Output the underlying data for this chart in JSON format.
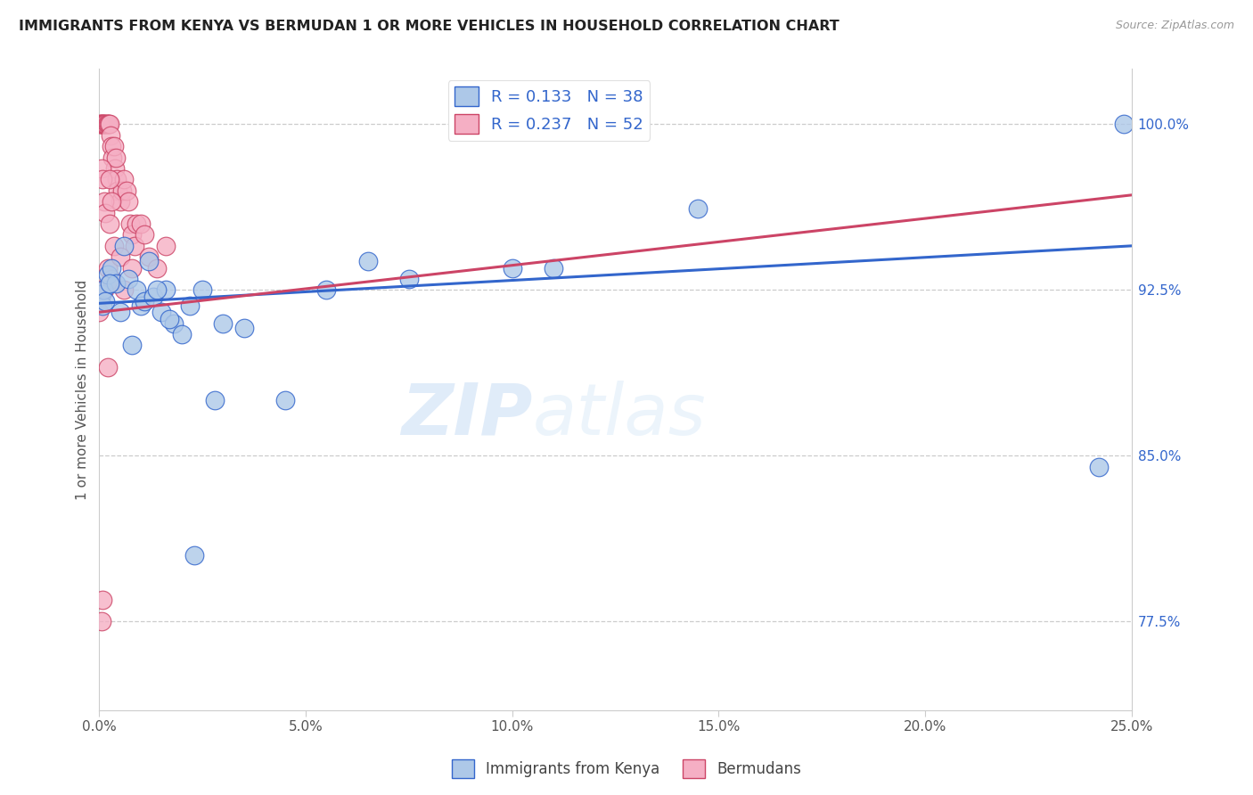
{
  "title": "IMMIGRANTS FROM KENYA VS BERMUDAN 1 OR MORE VEHICLES IN HOUSEHOLD CORRELATION CHART",
  "source": "Source: ZipAtlas.com",
  "xlabel_vals": [
    0.0,
    5.0,
    10.0,
    15.0,
    20.0,
    25.0
  ],
  "ylabel_vals": [
    77.5,
    85.0,
    92.5,
    100.0
  ],
  "ylabel_label": "1 or more Vehicles in Household",
  "legend_label1": "Immigrants from Kenya",
  "legend_label2": "Bermudans",
  "R1": 0.133,
  "N1": 38,
  "R2": 0.237,
  "N2": 52,
  "color1": "#adc8e8",
  "color2": "#f5afc4",
  "line_color1": "#3366cc",
  "line_color2": "#cc4466",
  "watermark_zip": "ZIP",
  "watermark_atlas": "atlas",
  "xlim": [
    0.0,
    25.0
  ],
  "ylim": [
    73.5,
    102.5
  ],
  "kenya_x": [
    0.05,
    0.08,
    0.1,
    0.15,
    0.2,
    0.3,
    0.4,
    0.5,
    0.6,
    0.7,
    0.9,
    1.0,
    1.1,
    1.2,
    1.3,
    1.5,
    1.6,
    1.8,
    2.0,
    2.2,
    2.5,
    3.0,
    3.5,
    4.5,
    5.5,
    7.5,
    10.0,
    11.0,
    24.2,
    24.8,
    0.25,
    0.8,
    1.4,
    2.8,
    6.5,
    14.5,
    1.7,
    2.3
  ],
  "kenya_y": [
    92.3,
    91.8,
    92.5,
    92.0,
    93.2,
    93.5,
    92.8,
    91.5,
    94.5,
    93.0,
    92.5,
    91.8,
    92.0,
    93.8,
    92.2,
    91.5,
    92.5,
    91.0,
    90.5,
    91.8,
    92.5,
    91.0,
    90.8,
    87.5,
    92.5,
    93.0,
    93.5,
    93.5,
    84.5,
    100.0,
    92.8,
    90.0,
    92.5,
    87.5,
    93.8,
    96.2,
    91.2,
    80.5
  ],
  "bermuda_x": [
    0.02,
    0.04,
    0.06,
    0.08,
    0.1,
    0.12,
    0.15,
    0.18,
    0.2,
    0.22,
    0.25,
    0.28,
    0.3,
    0.32,
    0.35,
    0.38,
    0.4,
    0.42,
    0.45,
    0.5,
    0.55,
    0.6,
    0.65,
    0.7,
    0.75,
    0.8,
    0.85,
    0.9,
    1.0,
    1.1,
    1.2,
    1.4,
    1.6,
    0.05,
    0.08,
    0.12,
    0.15,
    0.2,
    0.25,
    0.3,
    0.35,
    0.05,
    0.08,
    0.12,
    0.2,
    0.25,
    0.0,
    0.0,
    0.3,
    0.5,
    0.6,
    0.8
  ],
  "bermuda_y": [
    100.0,
    100.0,
    100.0,
    100.0,
    100.0,
    100.0,
    100.0,
    100.0,
    100.0,
    100.0,
    100.0,
    99.5,
    99.0,
    98.5,
    99.0,
    98.0,
    98.5,
    97.5,
    97.0,
    96.5,
    97.0,
    97.5,
    97.0,
    96.5,
    95.5,
    95.0,
    94.5,
    95.5,
    95.5,
    95.0,
    94.0,
    93.5,
    94.5,
    98.0,
    97.5,
    96.5,
    96.0,
    93.5,
    95.5,
    96.5,
    94.5,
    77.5,
    78.5,
    92.5,
    89.0,
    97.5,
    92.5,
    91.5,
    93.0,
    94.0,
    92.5,
    93.5
  ],
  "blue_line_x0": 0.0,
  "blue_line_y0": 91.9,
  "blue_line_x1": 25.0,
  "blue_line_y1": 94.5,
  "pink_line_x0": 0.0,
  "pink_line_y0": 91.5,
  "pink_line_x1": 25.0,
  "pink_line_y1": 96.8
}
